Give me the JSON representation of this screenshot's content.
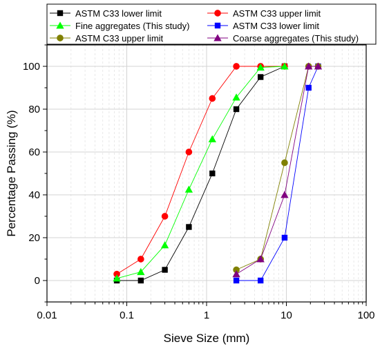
{
  "chart_data": {
    "type": "line",
    "xlabel": "Sieve Size (mm)",
    "ylabel": "Percentage Passing (%)",
    "x_scale": "log",
    "xlim": [
      0.01,
      100
    ],
    "ylim": [
      -10,
      110
    ],
    "x_ticks": [
      0.01,
      0.1,
      1,
      10,
      100
    ],
    "x_tick_labels": [
      "0.01",
      "0.1",
      "1",
      "10",
      "100"
    ],
    "y_ticks": [
      0,
      20,
      40,
      60,
      80,
      100
    ],
    "y_tick_labels": [
      "0",
      "20",
      "40",
      "60",
      "80",
      "100"
    ],
    "grid": true,
    "legend_position": "top",
    "series": [
      {
        "name": "ASTM C33 lower limit",
        "color": "#000000",
        "marker": "square",
        "x": [
          0.075,
          0.15,
          0.3,
          0.6,
          1.18,
          2.36,
          4.75,
          9.5
        ],
        "y": [
          0,
          0,
          5,
          25,
          50,
          80,
          95,
          100
        ]
      },
      {
        "name": "ASTM C33 upper limit",
        "color": "#ff0000",
        "marker": "circle",
        "x": [
          0.075,
          0.15,
          0.3,
          0.6,
          1.18,
          2.36,
          4.75,
          9.5
        ],
        "y": [
          3,
          10,
          30,
          60,
          85,
          100,
          100,
          100
        ]
      },
      {
        "name": "Fine aggregates (This study)",
        "color": "#00ff00",
        "marker": "triangle",
        "x": [
          0.075,
          0.15,
          0.3,
          0.6,
          1.18,
          2.36,
          4.75,
          9.5
        ],
        "y": [
          1,
          4,
          16.5,
          42.5,
          66,
          85.5,
          99.5,
          100
        ]
      },
      {
        "name": "ASTM C33 lower limit",
        "color": "#0000ff",
        "marker": "square",
        "x": [
          2.36,
          4.75,
          9.5,
          19,
          25
        ],
        "y": [
          0,
          0,
          20,
          90,
          100
        ]
      },
      {
        "name": "ASTM C33 upper limit",
        "color": "#808000",
        "marker": "circle",
        "x": [
          2.36,
          4.75,
          9.5,
          19,
          25
        ],
        "y": [
          5,
          10,
          55,
          100,
          100
        ]
      },
      {
        "name": "Coarse aggregates (This study)",
        "color": "#800080",
        "marker": "triangle",
        "x": [
          2.36,
          4.75,
          9.5,
          19,
          25
        ],
        "y": [
          3,
          10,
          40,
          100,
          100
        ]
      }
    ]
  }
}
